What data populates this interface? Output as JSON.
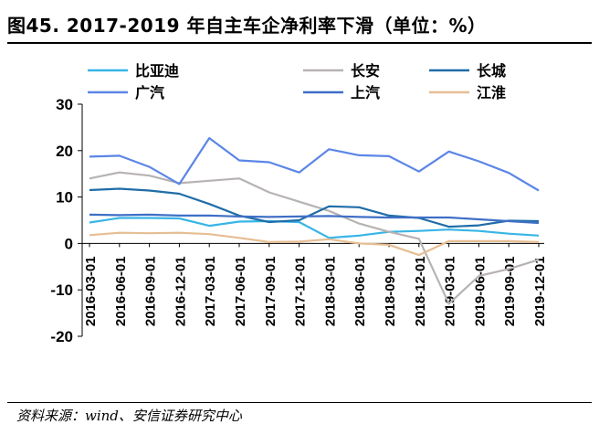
{
  "title": "图45. 2017-2019 年自主车企净利率下滑（单位：%）",
  "source": "资料来源：wind、安信证券研究中心",
  "chart_data": {
    "type": "line",
    "title": "图45. 2017-2019 年自主车企净利率下滑（单位：%）",
    "xlabel": "",
    "ylabel": "",
    "ylim": [
      -20,
      30
    ],
    "yticks": [
      -20,
      -10,
      0,
      10,
      20,
      30
    ],
    "ytick_labels": [
      "-20",
      "-10",
      "0",
      "10",
      "20",
      "30"
    ],
    "grid": false,
    "legend_position": "top",
    "categories": [
      "2016-03-01",
      "2016-06-01",
      "2016-09-01",
      "2016-12-01",
      "2017-03-01",
      "2017-06-01",
      "2017-09-01",
      "2017-12-01",
      "2018-03-01",
      "2018-06-01",
      "2018-09-01",
      "2018-12-01",
      "2019-03-01",
      "2019-06-01",
      "2019-09-01",
      "2019-12-01"
    ],
    "series": [
      {
        "name": "比亚迪",
        "color": "#38b5e6",
        "values": [
          4.5,
          5.5,
          5.5,
          5.4,
          3.8,
          4.7,
          4.8,
          4.6,
          1.2,
          1.7,
          2.5,
          2.7,
          3.0,
          2.7,
          2.1,
          1.7
        ]
      },
      {
        "name": "长安",
        "color": "#b7b3b2",
        "values": [
          14.0,
          15.3,
          14.6,
          13.0,
          13.5,
          14.0,
          11.0,
          9.0,
          7.0,
          4.3,
          2.5,
          1.0,
          -13.0,
          -7.0,
          -5.5,
          -3.5
        ]
      },
      {
        "name": "长城",
        "color": "#1f6da8",
        "values": [
          11.5,
          11.8,
          11.4,
          10.7,
          8.5,
          6.0,
          4.6,
          5.0,
          8.0,
          7.8,
          6.0,
          5.5,
          3.6,
          3.9,
          4.9,
          4.8
        ]
      },
      {
        "name": "广汽",
        "color": "#5b86e6",
        "values": [
          18.7,
          18.9,
          16.5,
          12.8,
          22.7,
          17.9,
          17.5,
          15.3,
          20.3,
          19.0,
          18.8,
          15.5,
          19.8,
          17.7,
          15.2,
          11.4
        ]
      },
      {
        "name": "上汽",
        "color": "#3f6fc6",
        "values": [
          6.2,
          6.1,
          6.2,
          6.0,
          6.0,
          5.8,
          5.7,
          5.8,
          5.9,
          5.7,
          5.6,
          5.6,
          5.6,
          5.2,
          4.8,
          4.4
        ]
      },
      {
        "name": "江淮",
        "color": "#e6be93",
        "values": [
          1.8,
          2.3,
          2.2,
          2.3,
          2.0,
          1.2,
          0.3,
          0.4,
          0.9,
          0.0,
          -0.3,
          -2.5,
          0.5,
          0.5,
          0.5,
          0.3
        ]
      }
    ]
  }
}
